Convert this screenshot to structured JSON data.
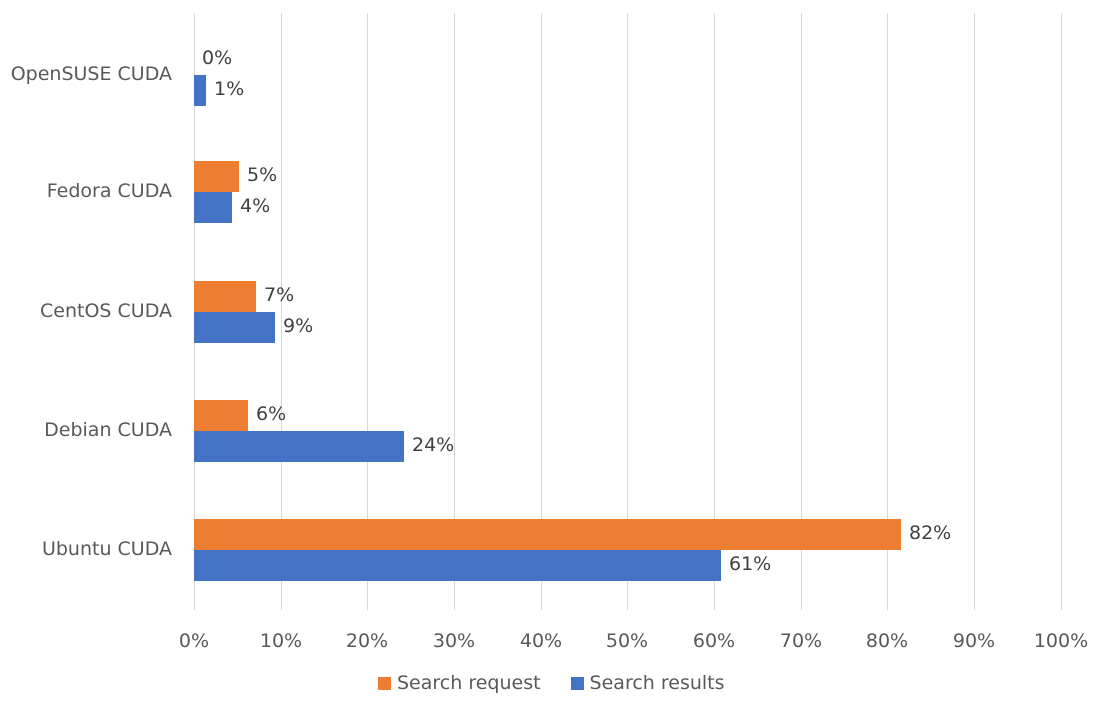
{
  "chart_data": {
    "type": "bar",
    "orientation": "horizontal",
    "title": "",
    "xlabel": "",
    "ylabel": "",
    "categories": [
      "OpenSUSE CUDA",
      "Fedora CUDA",
      "CentOS CUDA",
      "Debian CUDA",
      "Ubuntu CUDA"
    ],
    "series": [
      {
        "name": "Search request",
        "color": "#ed7d31",
        "values": [
          0,
          5,
          7,
          6,
          82
        ],
        "labels": [
          "0%",
          "5%",
          "7%",
          "6%",
          "82%"
        ]
      },
      {
        "name": "Search results",
        "color": "#4472c4",
        "values": [
          1,
          4,
          9,
          24,
          61
        ],
        "labels": [
          "1%",
          "4%",
          "9%",
          "24%",
          "61%"
        ]
      }
    ],
    "precise_values_estimated": {
      "Search request": [
        0,
        5.2,
        7.1,
        6.2,
        81.6
      ],
      "Search results": [
        1.4,
        4.4,
        9.4,
        24.2,
        60.8
      ]
    },
    "xlim": [
      0,
      100
    ],
    "xticks": [
      "0%",
      "10%",
      "20%",
      "30%",
      "40%",
      "50%",
      "60%",
      "70%",
      "80%",
      "90%",
      "100%"
    ],
    "grid": "vertical",
    "legend_position": "bottom"
  },
  "legend": {
    "items": [
      {
        "label": "Search request",
        "color": "#ed7d31"
      },
      {
        "label": "Search results",
        "color": "#4472c4"
      }
    ]
  }
}
